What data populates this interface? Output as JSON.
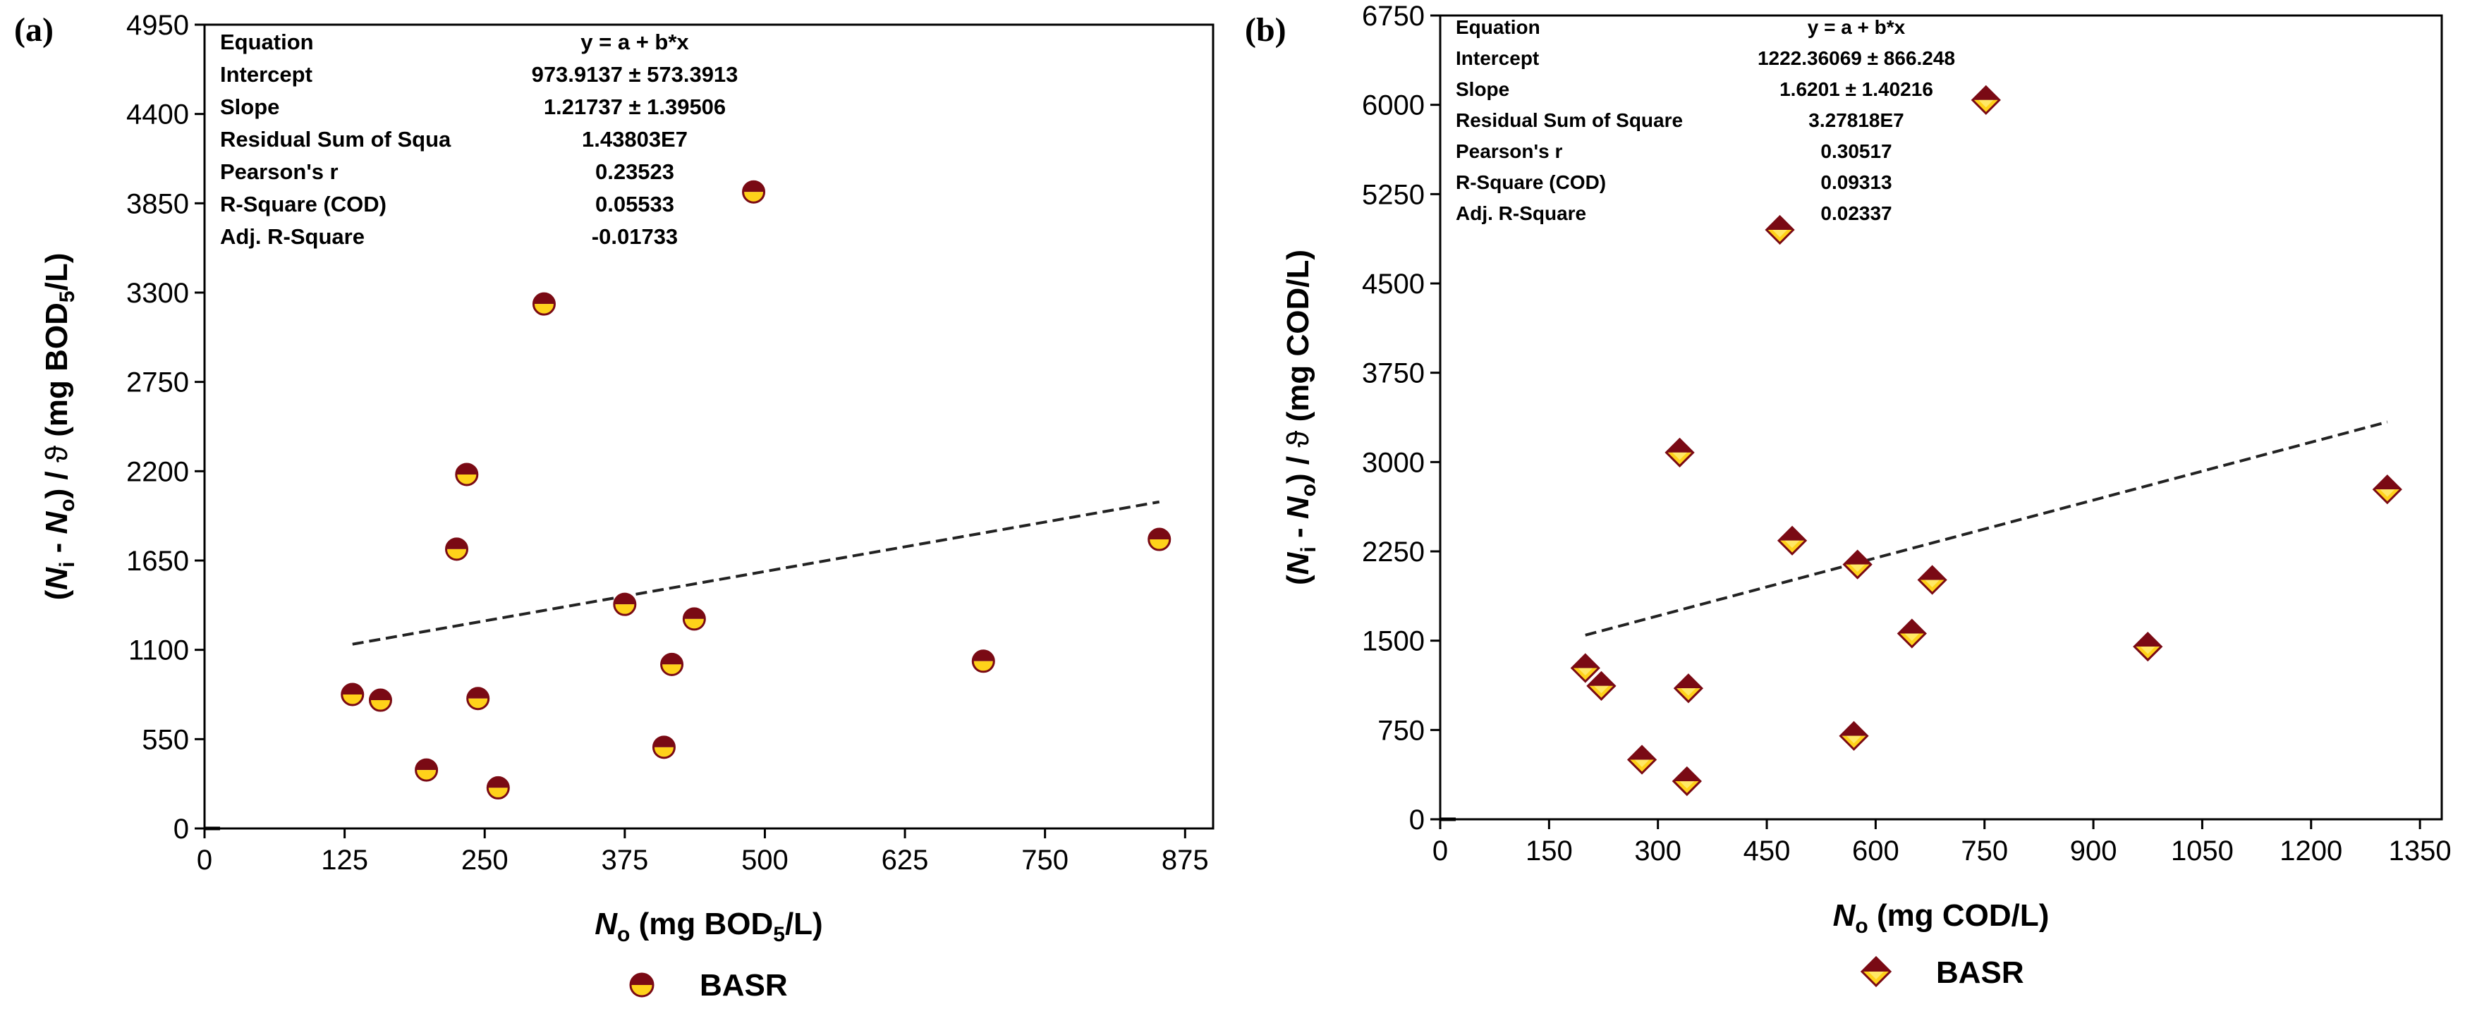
{
  "panels": [
    {
      "label": "(a)",
      "axis_titles": {
        "y": [
          "(",
          "N",
          "i",
          " - ",
          "N",
          "o",
          ") / ",
          "ϑ",
          " (mg BOD",
          "5",
          "/L)"
        ],
        "x": [
          "N",
          "o",
          " (mg BOD",
          "5",
          "/L)"
        ]
      },
      "legend": {
        "label": "BASR",
        "marker": "half-circle",
        "colors": {
          "top": "#7a0a14",
          "bottom": "#ffd21a"
        }
      },
      "stats_table": [
        [
          "Equation",
          "y = a + b*x"
        ],
        [
          "Intercept",
          "973.9137 ± 573.3913"
        ],
        [
          "Slope",
          "1.21737 ± 1.39506"
        ],
        [
          "Residual Sum of Squa",
          "1.43803E7"
        ],
        [
          "Pearson's r",
          "0.23523"
        ],
        [
          "R-Square (COD)",
          "0.05533"
        ],
        [
          "Adj. R-Square",
          "-0.01733"
        ]
      ]
    },
    {
      "label": "(b)",
      "axis_titles": {
        "y": [
          "(",
          "N",
          "i",
          " - ",
          "N",
          "o",
          ") / ",
          "ϑ",
          " (mg COD/L)"
        ],
        "x": [
          "N",
          "o",
          " (mg COD/L)"
        ]
      },
      "legend": {
        "label": "BASR",
        "marker": "diamond",
        "colors": {
          "top": "#7a0a14",
          "bottom": "#ffd21a"
        }
      },
      "stats_table": [
        [
          "Equation",
          "y = a + b*x"
        ],
        [
          "Intercept",
          "1222.36069 ± 866.248"
        ],
        [
          "Slope",
          "1.6201 ± 1.40216"
        ],
        [
          "Residual Sum of Square",
          "3.27818E7"
        ],
        [
          "Pearson's r",
          "0.30517"
        ],
        [
          "R-Square (COD)",
          "0.09313"
        ],
        [
          "Adj. R-Square",
          "0.02337"
        ]
      ]
    }
  ],
  "chart_data": [
    {
      "type": "scatter",
      "title": "(a)",
      "xlabel": "No (mg BOD5/L)",
      "ylabel": "(Ni - No) / ϑ (mg BOD5/L)",
      "xlim": [
        0,
        900
      ],
      "ylim": [
        0,
        4950
      ],
      "xticks": [
        0,
        125,
        250,
        375,
        500,
        625,
        750,
        875
      ],
      "yticks": [
        0,
        550,
        1100,
        1650,
        2200,
        2750,
        3300,
        3850,
        4400,
        4950
      ],
      "series": [
        {
          "name": "BASR",
          "x": [
            132,
            157,
            198,
            225,
            234,
            244,
            262,
            303,
            375,
            410,
            417,
            437,
            490,
            695,
            852
          ],
          "y": [
            825,
            790,
            360,
            1720,
            2180,
            800,
            250,
            3230,
            1380,
            500,
            1010,
            1290,
            3920,
            1030,
            1780
          ]
        }
      ],
      "fit": {
        "intercept": 973.9137,
        "slope": 1.21737,
        "x_range": [
          132,
          852
        ]
      }
    },
    {
      "type": "scatter",
      "title": "(b)",
      "xlabel": "No (mg COD/L)",
      "ylabel": "(Ni - No) / ϑ (mg COD/L)",
      "xlim": [
        0,
        1380
      ],
      "ylim": [
        0,
        6750
      ],
      "xticks": [
        0,
        150,
        300,
        450,
        600,
        750,
        900,
        1050,
        1200,
        1350
      ],
      "yticks": [
        0,
        750,
        1500,
        2250,
        3000,
        3750,
        4500,
        5250,
        6000,
        6750
      ],
      "series": [
        {
          "name": "BASR",
          "x": [
            200,
            222,
            278,
            330,
            340,
            342,
            468,
            485,
            570,
            575,
            650,
            678,
            752,
            975,
            1305
          ],
          "y": [
            1270,
            1120,
            500,
            3080,
            320,
            1100,
            4950,
            2340,
            700,
            2140,
            1560,
            2010,
            6040,
            1450,
            2770
          ]
        }
      ],
      "fit": {
        "intercept": 1222.36069,
        "slope": 1.6201,
        "x_range": [
          200,
          1305
        ]
      }
    }
  ]
}
